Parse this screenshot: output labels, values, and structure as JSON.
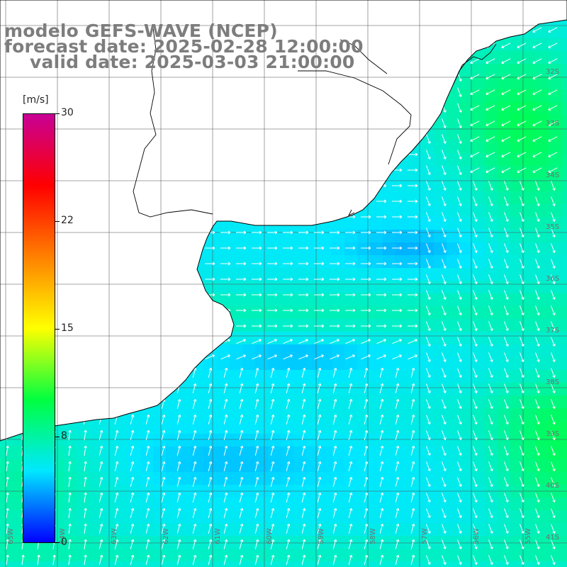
{
  "title": {
    "line1": "modelo GEFS-WAVE (NCEP)",
    "line2": "forecast date: 2025-02-28 12:00:00",
    "line3": "valid date: 2025-03-03 21:00:00"
  },
  "colorbar": {
    "unit": "[m/s]",
    "min": 0,
    "max": 30,
    "labels": [
      "30",
      "22",
      "15",
      "8",
      "0"
    ],
    "stops": [
      "#0000ff",
      "#00e8ff",
      "#00ff40",
      "#ffff00",
      "#ff8000",
      "#ff0000",
      "#c80096"
    ]
  },
  "map": {
    "variable": "wind speed",
    "colors": {
      "land": "#ffffff",
      "coast": "#000000",
      "grid": "#555555",
      "arrow": "#ffffff"
    },
    "lat_labels": [
      "32S",
      "33S",
      "34S",
      "35S",
      "36S",
      "37S",
      "38S",
      "39S",
      "40S",
      "41S"
    ],
    "lon_labels": [
      "65W",
      "64W",
      "63W",
      "62W",
      "61W",
      "60W",
      "59W",
      "58W",
      "57W",
      "56W",
      "55W"
    ]
  }
}
